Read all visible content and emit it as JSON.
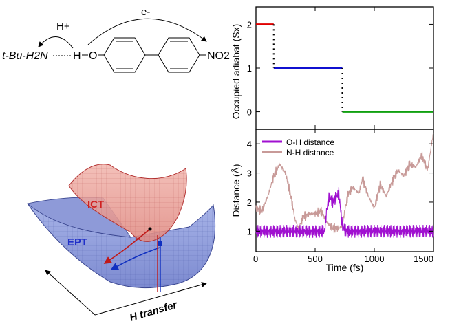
{
  "scheme": {
    "proton_label": "H+",
    "electron_label": "e-",
    "donor_text": "t-Bu-H2N",
    "hydrogen": "H",
    "oxygen": "O",
    "nitro": "NO2"
  },
  "surfaces": {
    "ict_label": "ICT",
    "ept_label": "EPT",
    "axis_label": "H transfer",
    "colors": {
      "ict": "#e06060",
      "ept": "#5566cc",
      "red_path": "#c01818",
      "blue_path": "#1030c0"
    }
  },
  "chart_data": [
    {
      "type": "line",
      "xlabel": "",
      "ylabel": "Occupied adiabat (Sx)",
      "xlim": [
        0,
        1500
      ],
      "ylim": [
        -0.4,
        2.4
      ],
      "yticks": [
        0,
        1,
        2
      ],
      "xticks": [
        0,
        500,
        1000,
        1500
      ],
      "series": [
        {
          "color": "#e00000",
          "x": [
            0,
            150
          ],
          "y": [
            2,
            2
          ]
        },
        {
          "color": "#1010d0",
          "x": [
            150,
            730
          ],
          "y": [
            1,
            1
          ]
        },
        {
          "color": "#10a010",
          "x": [
            730,
            1500
          ],
          "y": [
            0,
            0
          ]
        }
      ],
      "hops": [
        {
          "x": 150,
          "from": 2,
          "to": 1
        },
        {
          "x": 730,
          "from": 1,
          "to": 0
        }
      ]
    },
    {
      "type": "line",
      "xlabel": "Time (fs)",
      "ylabel": "Distance (Å)",
      "xlim": [
        0,
        1500
      ],
      "ylim": [
        0.3,
        4.5
      ],
      "yticks": [
        1,
        2,
        3,
        4
      ],
      "xticks": [
        0,
        500,
        1000,
        1500
      ],
      "xtick_labels": [
        "0",
        "500",
        "1000",
        "1500"
      ],
      "legend_position": "top-center",
      "series": [
        {
          "name": "O-H distance",
          "color": "#a010d0",
          "x": [
            0,
            100,
            200,
            300,
            400,
            500,
            580,
            600,
            620,
            650,
            700,
            730,
            760,
            800,
            900,
            1000,
            1100,
            1200,
            1300,
            1400,
            1500
          ],
          "y": [
            1.0,
            1.0,
            1.0,
            1.0,
            1.0,
            1.0,
            1.0,
            1.8,
            2.2,
            2.0,
            2.3,
            1.2,
            1.0,
            1.0,
            1.0,
            1.0,
            1.0,
            1.0,
            1.0,
            1.0,
            1.0
          ]
        },
        {
          "name": "N-H distance",
          "color": "#c89a98",
          "x": [
            0,
            50,
            100,
            150,
            200,
            250,
            300,
            330,
            360,
            400,
            450,
            500,
            550,
            600,
            650,
            700,
            730,
            750,
            780,
            820,
            870,
            900,
            950,
            1000,
            1050,
            1100,
            1150,
            1200,
            1250,
            1300,
            1350,
            1400,
            1450,
            1500
          ],
          "y": [
            1.8,
            1.7,
            2.2,
            2.9,
            3.3,
            3.0,
            2.1,
            1.4,
            1.1,
            1.5,
            1.6,
            1.6,
            1.7,
            1.3,
            1.1,
            1.1,
            1.2,
            1.7,
            2.3,
            2.5,
            2.3,
            2.8,
            2.2,
            1.8,
            2.6,
            2.2,
            2.7,
            3.1,
            2.9,
            3.3,
            3.2,
            3.6,
            3.1,
            4.4
          ]
        }
      ]
    }
  ]
}
